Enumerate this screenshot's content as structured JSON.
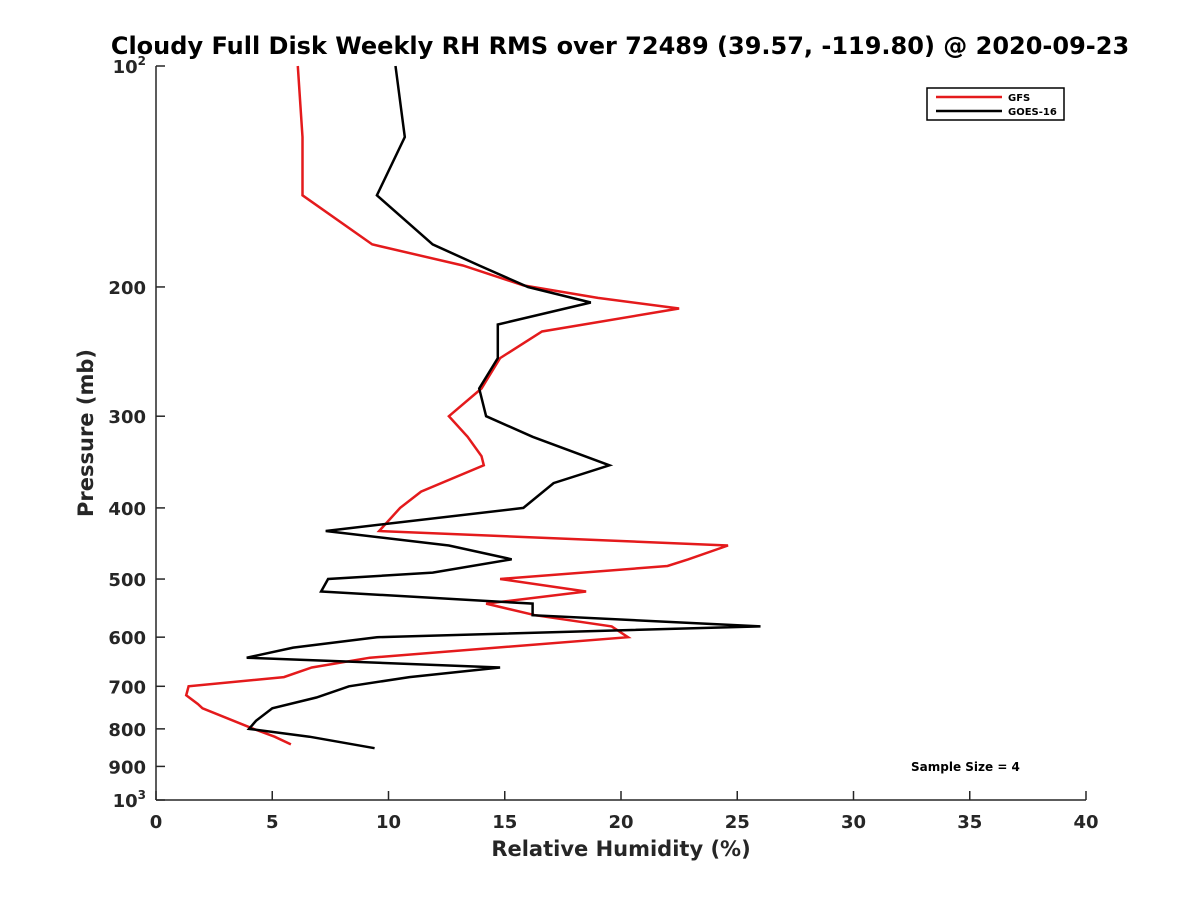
{
  "chart_data": {
    "type": "line",
    "title": "Cloudy Full Disk Weekly RH RMS over 72489 (39.57, -119.80) @ 2020-09-23",
    "xlabel": "Relative Humidity (%)",
    "ylabel": "Pressure (mb)",
    "xlim": [
      0,
      40
    ],
    "ylim": [
      100,
      1000
    ],
    "yscale": "log",
    "y_reversed": true,
    "x_ticks": [
      0,
      5,
      10,
      15,
      20,
      25,
      30,
      35,
      40
    ],
    "x_tick_labels": [
      "0",
      "5",
      "10",
      "15",
      "20",
      "25",
      "30",
      "35",
      "40"
    ],
    "y_ticks": [
      100,
      200,
      300,
      400,
      500,
      600,
      700,
      800,
      900,
      1000
    ],
    "y_tick_labels": [
      {
        "base": "10",
        "sup": "2"
      },
      {
        "base": "200",
        "sup": ""
      },
      {
        "base": "300",
        "sup": ""
      },
      {
        "base": "400",
        "sup": ""
      },
      {
        "base": "500",
        "sup": ""
      },
      {
        "base": "600",
        "sup": ""
      },
      {
        "base": "700",
        "sup": ""
      },
      {
        "base": "800",
        "sup": ""
      },
      {
        "base": "900",
        "sup": ""
      },
      {
        "base": "10",
        "sup": "3"
      }
    ],
    "grid": false,
    "legend_position": "top-right",
    "annotation": "Sample Size = 4",
    "series": [
      {
        "name": "GFS",
        "color": "#e41a1c",
        "points": [
          [
            6.1,
            100
          ],
          [
            6.3,
            125
          ],
          [
            6.3,
            150
          ],
          [
            9.3,
            175
          ],
          [
            13.2,
            187
          ],
          [
            15.8,
            199
          ],
          [
            19.0,
            207
          ],
          [
            22.5,
            214
          ],
          [
            16.6,
            230
          ],
          [
            14.8,
            250
          ],
          [
            14.0,
            275
          ],
          [
            12.6,
            300
          ],
          [
            13.4,
            320
          ],
          [
            14.0,
            340
          ],
          [
            14.1,
            350
          ],
          [
            11.4,
            380
          ],
          [
            10.5,
            400
          ],
          [
            9.6,
            430
          ],
          [
            24.6,
            450
          ],
          [
            22.9,
            470
          ],
          [
            22.0,
            480
          ],
          [
            14.8,
            500
          ],
          [
            18.5,
            520
          ],
          [
            14.2,
            540
          ],
          [
            16.3,
            560
          ],
          [
            19.6,
            580
          ],
          [
            20.3,
            600
          ],
          [
            9.2,
            640
          ],
          [
            6.7,
            660
          ],
          [
            5.5,
            680
          ],
          [
            1.4,
            700
          ],
          [
            1.3,
            720
          ],
          [
            1.8,
            740
          ],
          [
            2.0,
            750
          ],
          [
            4.2,
            800
          ],
          [
            5.1,
            820
          ],
          [
            5.8,
            840
          ]
        ]
      },
      {
        "name": "GOES-16",
        "color": "#000000",
        "points": [
          [
            10.3,
            100
          ],
          [
            10.7,
            125
          ],
          [
            9.5,
            150
          ],
          [
            11.9,
            175
          ],
          [
            13.9,
            187
          ],
          [
            16.0,
            200
          ],
          [
            18.7,
            210
          ],
          [
            14.7,
            225
          ],
          [
            14.7,
            250
          ],
          [
            13.9,
            275
          ],
          [
            14.2,
            300
          ],
          [
            16.2,
            320
          ],
          [
            19.5,
            350
          ],
          [
            17.1,
            370
          ],
          [
            15.8,
            400
          ],
          [
            7.3,
            430
          ],
          [
            12.6,
            450
          ],
          [
            15.3,
            470
          ],
          [
            11.9,
            490
          ],
          [
            7.4,
            500
          ],
          [
            7.1,
            520
          ],
          [
            16.2,
            540
          ],
          [
            16.2,
            560
          ],
          [
            26.0,
            580
          ],
          [
            9.5,
            600
          ],
          [
            5.9,
            620
          ],
          [
            3.9,
            640
          ],
          [
            14.8,
            660
          ],
          [
            10.9,
            680
          ],
          [
            8.3,
            700
          ],
          [
            6.9,
            725
          ],
          [
            5.0,
            750
          ],
          [
            4.3,
            780
          ],
          [
            4.0,
            800
          ],
          [
            6.6,
            820
          ],
          [
            9.4,
            850
          ]
        ]
      }
    ]
  }
}
